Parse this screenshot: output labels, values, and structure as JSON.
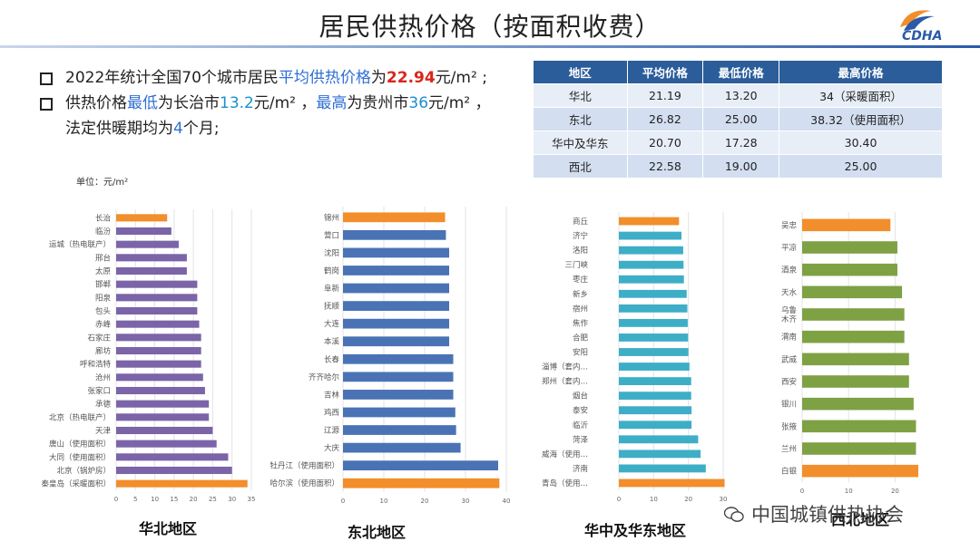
{
  "title": "居民供热价格（按面积收费）",
  "logo_text": "CDHA",
  "bullets": {
    "b1_pre": "2022年统计全国70个城市居民",
    "b1_hl": "平均供热价格",
    "b1_mid": "为",
    "b1_val": "22.94",
    "b1_post": "元/m² ;",
    "b2_pre": "供热价格",
    "b2_low": "最低",
    "b2_mid1": "为长治市",
    "b2_lowval": "13.2",
    "b2_mid2": "元/m² ，",
    "b2_high": "最高",
    "b2_mid3": "为贵州市",
    "b2_highval": "36",
    "b2_post": "元/m² ，",
    "b3_pre": "法定供暖期均为",
    "b3_val": "4",
    "b3_post": "个月;"
  },
  "summary_table": {
    "headers": [
      "地区",
      "平均价格",
      "最低价格",
      "最高价格"
    ],
    "rows": [
      [
        "华北",
        "21.19",
        "13.20",
        "34（采暖面积）"
      ],
      [
        "东北",
        "26.82",
        "25.00",
        "38.32（使用面积）"
      ],
      [
        "华中及华东",
        "20.70",
        "17.28",
        "30.40"
      ],
      [
        "西北",
        "22.58",
        "19.00",
        "25.00"
      ]
    ]
  },
  "unit_label": "单位：元/m²",
  "watermark": "中国城镇供热协会",
  "colors": {
    "highlight": "#f28e2b",
    "title_bar": "#2b5d9a"
  },
  "chart_data": [
    {
      "type": "bar",
      "orientation": "horizontal",
      "name": "华北地区",
      "color": "#7b64a8",
      "highlight_color": "#f28e2b",
      "xlim": [
        0,
        35
      ],
      "xticks": [
        0,
        5,
        10,
        15,
        20,
        25,
        30,
        35
      ],
      "categories": [
        "长治",
        "临汾",
        "运城（热电联产）",
        "邢台",
        "太原",
        "邯郸",
        "阳泉",
        "包头",
        "赤峰",
        "石家庄",
        "廊坊",
        "呼和浩特",
        "沧州",
        "张家口",
        "承德",
        "北京（热电联产）",
        "天津",
        "唐山（使用面积）",
        "大同（使用面积）",
        "北京（锅炉房）",
        "秦皇岛（采暖面积）"
      ],
      "values": [
        13.2,
        14.3,
        16.2,
        18.3,
        18.3,
        21.0,
        21.0,
        21.0,
        21.5,
        22.0,
        22.0,
        22.0,
        22.5,
        23.0,
        24.0,
        24.0,
        25.0,
        26.0,
        29.0,
        30.0,
        34.0
      ],
      "highlight_index": [
        0,
        20
      ]
    },
    {
      "type": "bar",
      "orientation": "horizontal",
      "name": "东北地区",
      "color": "#4a73b5",
      "highlight_color": "#f28e2b",
      "xlim": [
        0,
        40
      ],
      "xticks": [
        0,
        10,
        20,
        30,
        40
      ],
      "categories": [
        "锦州",
        "营口",
        "沈阳",
        "鹤岗",
        "阜新",
        "抚顺",
        "大连",
        "本溪",
        "长春",
        "齐齐哈尔",
        "吉林",
        "鸡西",
        "辽源",
        "大庆",
        "牡丹江（使用面积）",
        "哈尔滨（使用面积）"
      ],
      "values": [
        25.0,
        25.2,
        26.0,
        26.0,
        26.0,
        26.0,
        26.0,
        26.0,
        27.0,
        27.0,
        27.0,
        27.5,
        27.7,
        28.8,
        38.0,
        38.3
      ],
      "highlight_index": [
        0,
        15
      ]
    },
    {
      "type": "bar",
      "orientation": "horizontal",
      "name": "华中及华东地区",
      "color": "#3eaec7",
      "highlight_color": "#f28e2b",
      "xlim": [
        0,
        30
      ],
      "xticks": [
        0,
        10,
        20,
        30
      ],
      "categories": [
        "商丘",
        "济宁",
        "洛阳",
        "三门峡",
        "枣庄",
        "新乡",
        "宿州",
        "焦作",
        "合肥",
        "安阳",
        "淄博（套内…",
        "郑州（套内…",
        "烟台",
        "泰安",
        "临沂",
        "菏泽",
        "威海（使用…",
        "济南",
        "青岛（使用…"
      ],
      "values": [
        17.3,
        18.0,
        18.5,
        18.6,
        18.7,
        19.5,
        19.7,
        19.8,
        19.9,
        20.0,
        20.3,
        20.8,
        20.8,
        20.9,
        20.9,
        22.8,
        23.5,
        25.0,
        30.4
      ],
      "highlight_index": [
        0,
        18
      ]
    },
    {
      "type": "bar",
      "orientation": "horizontal",
      "name": "西北地区",
      "color": "#7ea143",
      "highlight_color": "#f28e2b",
      "xlim": [
        0,
        25
      ],
      "xticks": [
        0,
        10,
        20
      ],
      "categories": [
        "吴忠",
        "平凉",
        "酒泉",
        "天水",
        "乌鲁木齐",
        "渭南",
        "武威",
        "西安",
        "银川",
        "张掖",
        "兰州",
        "白银"
      ],
      "values": [
        19.0,
        20.5,
        20.5,
        21.5,
        22.0,
        22.0,
        23.0,
        23.0,
        24.0,
        24.5,
        24.5,
        25.0
      ],
      "highlight_index": [
        0,
        11
      ]
    }
  ]
}
